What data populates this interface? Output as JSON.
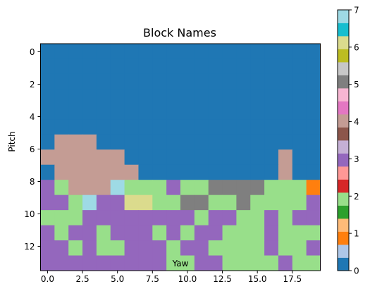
{
  "chart_data": {
    "type": "heatmap",
    "title": "Block Names",
    "xlabel": "Yaw",
    "ylabel": "Pitch",
    "x_ticks": [
      "0.0",
      "2.5",
      "5.0",
      "7.5",
      "10.0",
      "12.5",
      "15.0",
      "17.5"
    ],
    "x_tick_values": [
      0,
      2.5,
      5,
      7.5,
      10,
      12.5,
      15,
      17.5
    ],
    "y_ticks": [
      "0",
      "2",
      "4",
      "6",
      "8",
      "10",
      "12"
    ],
    "y_tick_values": [
      0,
      2,
      4,
      6,
      8,
      10,
      12
    ],
    "xlim": [
      -0.5,
      19.5
    ],
    "ylim": [
      13.5,
      -0.5
    ],
    "colorbar": {
      "ticks": [
        "0",
        "1",
        "2",
        "3",
        "4",
        "5",
        "6",
        "7"
      ],
      "range": [
        0,
        7
      ],
      "colors": [
        "#1f77b4",
        "#aec7e8",
        "#ff7f0e",
        "#ffbb78",
        "#2ca02c",
        "#98df8a",
        "#d62728",
        "#ff9896",
        "#9467bd",
        "#c5b0d5",
        "#8c564b",
        "#c49c94",
        "#e377c2",
        "#f7b6d2",
        "#7f7f7f",
        "#c7c7c7",
        "#bcbd22",
        "#dbdb8d",
        "#17becf",
        "#9edae5"
      ]
    },
    "cell_colors": {
      "B": "#1f77b4",
      "P": "#9467bd",
      "G": "#98df8a",
      "T": "#c49c94",
      "D": "#7f7f7f",
      "O": "#ff7f0e",
      "L": "#9edae5",
      "Y": "#dbdb8d"
    },
    "grid": [
      "BBBBBBBBBBBBBBBBBBBB",
      "BBBBBBBBBBBBBBBBBBBB",
      "BBBBBBBBBBBBBBBBBBBB",
      "BBBBBBBBBBBBBBBBBBBB",
      "BBBBBBBBBBBBBBBBBBBB",
      "BBBBBBBBBBBBBBBBBBBB",
      "BTTTBBBBBBBBBBBBBBBB",
      "TTTTTTBBBBBBBBBBBTBB",
      "BTTTTTTBBBBBBBBBBTBB",
      "PGTTTLGGGPGGDDDDGGGO",
      "PPGLPPYYGGDDGGDGGGGP",
      "GGGPPPPPPPPGPPGGPGPP",
      "PGPPGPPPGPGPPGGGPGGG",
      "PPGPGGPPPGPPGGGGPGGP",
      "PPPPPPPPPGGPPGGGGPGG"
    ]
  }
}
